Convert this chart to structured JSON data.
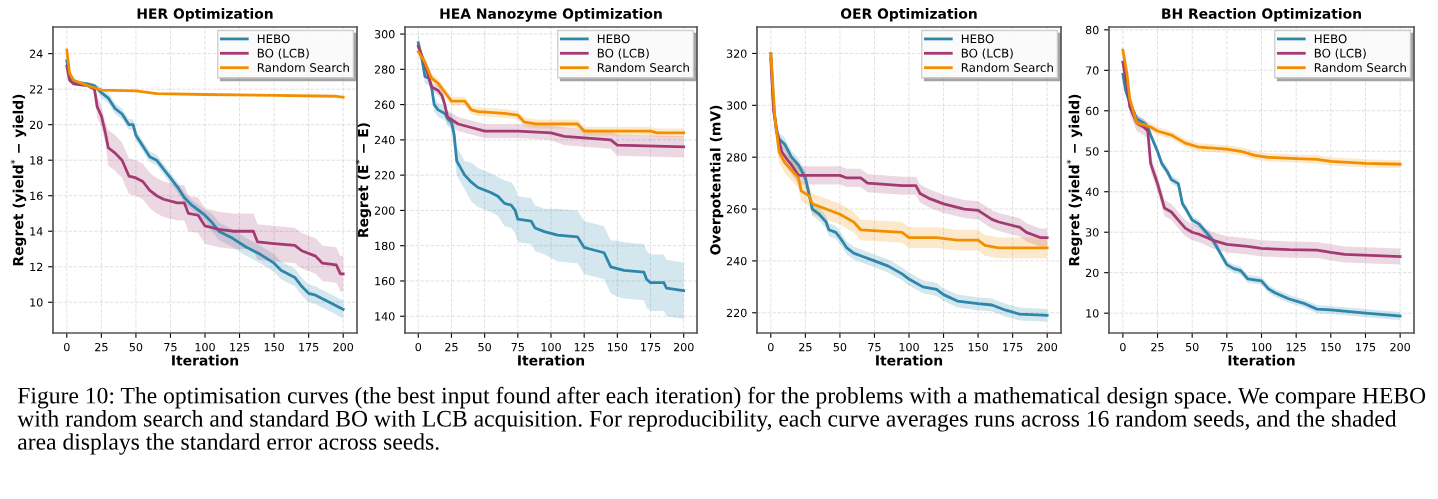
{
  "chart_data": [
    {
      "type": "line",
      "title": "HER Optimization",
      "xlabel": "Iteration",
      "ylabel": "Regret (yield$^{*}$ − yield)",
      "xlim": [
        -10,
        210
      ],
      "xticks": [
        0,
        25,
        50,
        75,
        100,
        125,
        150,
        175,
        200
      ],
      "ylim": [
        8.27,
        25.5
      ],
      "yticks": [
        10,
        12,
        14,
        16,
        18,
        20,
        22,
        24
      ],
      "grid": true,
      "legend": "top right",
      "series": [
        {
          "name": "HEBO",
          "color": "#2e86ab",
          "x": [
            0,
            2,
            5,
            15,
            20,
            25,
            30,
            35,
            40,
            45,
            48,
            50,
            55,
            60,
            65,
            70,
            75,
            80,
            85,
            90,
            95,
            100,
            105,
            110,
            120,
            130,
            140,
            150,
            155,
            165,
            170,
            175,
            180,
            190,
            200
          ],
          "values": [
            23.6,
            22.6,
            22.4,
            22.3,
            22.2,
            21.8,
            21.5,
            20.9,
            20.6,
            20.0,
            20.0,
            19.4,
            18.8,
            18.2,
            18.0,
            17.5,
            17.0,
            16.5,
            15.9,
            15.5,
            15.2,
            14.9,
            14.5,
            14.0,
            13.6,
            13.1,
            12.7,
            12.2,
            11.8,
            11.4,
            10.9,
            10.5,
            10.4,
            10.0,
            9.6
          ],
          "lower": [
            23.5,
            22.5,
            22.3,
            22.2,
            22.1,
            21.5,
            21.2,
            20.6,
            20.3,
            19.7,
            19.7,
            19.1,
            18.5,
            17.9,
            17.7,
            17.2,
            16.7,
            16.2,
            15.6,
            15.2,
            14.9,
            14.6,
            14.0,
            13.5,
            13.1,
            12.6,
            12.2,
            11.7,
            11.3,
            10.9,
            10.4,
            10.0,
            9.9,
            9.5,
            9.1
          ],
          "upper": [
            23.7,
            22.7,
            22.5,
            22.4,
            22.3,
            22.1,
            21.8,
            21.2,
            20.9,
            20.3,
            20.3,
            19.7,
            19.1,
            18.5,
            18.3,
            17.8,
            17.3,
            16.8,
            16.2,
            15.8,
            15.5,
            15.2,
            15.0,
            14.5,
            14.1,
            13.6,
            13.2,
            12.7,
            12.3,
            11.9,
            11.4,
            11.0,
            10.9,
            10.5,
            10.1
          ]
        },
        {
          "name": "BO (LCB)",
          "color": "#a23b72",
          "x": [
            0,
            2,
            5,
            15,
            20,
            22,
            25,
            28,
            30,
            35,
            40,
            45,
            50,
            55,
            60,
            65,
            70,
            80,
            85,
            88,
            95,
            100,
            110,
            120,
            135,
            138,
            150,
            165,
            170,
            180,
            185,
            195,
            198,
            200
          ],
          "values": [
            23.3,
            22.5,
            22.3,
            22.2,
            22.0,
            21.0,
            20.5,
            19.5,
            18.7,
            18.4,
            18.0,
            17.1,
            17.0,
            16.8,
            16.3,
            16.0,
            15.8,
            15.6,
            15.6,
            15.0,
            14.9,
            14.3,
            14.1,
            14.0,
            14.0,
            13.4,
            13.3,
            13.2,
            12.9,
            12.6,
            12.2,
            12.1,
            11.6,
            11.6
          ],
          "lower": [
            23.2,
            22.4,
            22.2,
            22.1,
            21.9,
            20.4,
            19.9,
            18.9,
            17.7,
            17.4,
            17.0,
            16.1,
            16.0,
            15.8,
            15.3,
            15.0,
            14.8,
            14.6,
            14.6,
            14.0,
            13.9,
            13.3,
            13.1,
            13.0,
            13.0,
            12.4,
            12.3,
            12.2,
            11.9,
            11.6,
            11.2,
            11.1,
            10.6,
            10.6
          ],
          "upper": [
            23.4,
            22.6,
            22.4,
            22.3,
            22.1,
            21.6,
            21.1,
            20.1,
            19.7,
            19.4,
            19.0,
            18.1,
            18.0,
            17.8,
            17.3,
            17.0,
            16.8,
            16.6,
            16.6,
            16.0,
            15.9,
            15.3,
            15.1,
            15.0,
            15.0,
            14.4,
            14.3,
            14.2,
            13.9,
            13.6,
            13.2,
            13.1,
            12.6,
            12.6
          ]
        },
        {
          "name": "Random Search",
          "color": "#f18f01",
          "x": [
            0,
            2,
            5,
            15,
            25,
            50,
            65,
            100,
            150,
            195,
            200
          ],
          "values": [
            24.2,
            22.9,
            22.5,
            22.2,
            21.95,
            21.9,
            21.75,
            21.7,
            21.65,
            21.6,
            21.55
          ]
        }
      ],
      "annotations": [
        "Figure 10: The optimisation curves (the best input found after each iteration) for the problems with a mathematical design space. We compare HEBO with random search and standard BO with LCB acquisition. For reproducibility, each curve averages runs across 16 random seeds, and the shaded area displays the standard error across seeds."
      ]
    },
    {
      "type": "line",
      "title": "HEA Nanozyme Optimization",
      "xlabel": "Iteration",
      "ylabel": "Regret (E$^{*}$ − E)",
      "xlim": [
        -10,
        210
      ],
      "xticks": [
        0,
        25,
        50,
        75,
        100,
        125,
        150,
        175,
        200
      ],
      "ylim": [
        130.5,
        304
      ],
      "yticks": [
        140,
        160,
        180,
        200,
        220,
        240,
        260,
        280,
        300
      ],
      "grid": true,
      "legend": "top right",
      "series": [
        {
          "name": "HEBO",
          "color": "#2e86ab",
          "x": [
            0,
            3,
            5,
            8,
            10,
            12,
            15,
            20,
            22,
            25,
            27,
            29,
            32,
            35,
            40,
            45,
            55,
            60,
            65,
            70,
            73,
            75,
            85,
            88,
            95,
            105,
            120,
            125,
            130,
            135,
            140,
            145,
            150,
            155,
            170,
            172,
            175,
            185,
            187,
            200
          ],
          "values": [
            295,
            285,
            276,
            275,
            270,
            260,
            257,
            255,
            252,
            250,
            243,
            228,
            224,
            220,
            216,
            213,
            210,
            208,
            204,
            203,
            200,
            195,
            194,
            190,
            188,
            186,
            185,
            179,
            178,
            177,
            176,
            168,
            167,
            166,
            165,
            161,
            159,
            159,
            156,
            154.5
          ],
          "lower": [
            291,
            281,
            272,
            271,
            266,
            256,
            253,
            251,
            248,
            246,
            235,
            220,
            216,
            212,
            205,
            202,
            199,
            197,
            191,
            190,
            187,
            182,
            181,
            177,
            175,
            171,
            170,
            164,
            163,
            162,
            161,
            153,
            151,
            150,
            149,
            145,
            143,
            143,
            140,
            138.5
          ],
          "upper": [
            299,
            289,
            280,
            279,
            274,
            264,
            261,
            259,
            256,
            254,
            251,
            236,
            232,
            228,
            227,
            224,
            221,
            219,
            217,
            216,
            213,
            208,
            207,
            203,
            201,
            201,
            200,
            194,
            193,
            192,
            191,
            183,
            183,
            182,
            181,
            177,
            175,
            175,
            172,
            170.5
          ]
        },
        {
          "name": "BO (LCB)",
          "color": "#a23b72",
          "x": [
            0,
            5,
            10,
            15,
            18,
            20,
            22,
            30,
            40,
            50,
            75,
            100,
            110,
            145,
            150,
            200
          ],
          "values": [
            293,
            283,
            270,
            268,
            265,
            260,
            253,
            249,
            247,
            245,
            245,
            244,
            242,
            240,
            237,
            236
          ],
          "lower": [
            291,
            281,
            268,
            265,
            262,
            257,
            249,
            245,
            243,
            241,
            241,
            240,
            237,
            235,
            231,
            230
          ],
          "upper": [
            295,
            285,
            272,
            271,
            268,
            263,
            257,
            253,
            251,
            249,
            249,
            248,
            247,
            245,
            243,
            242
          ]
        },
        {
          "name": "Random Search",
          "color": "#f18f01",
          "x": [
            0,
            5,
            10,
            15,
            20,
            25,
            35,
            40,
            45,
            65,
            75,
            80,
            90,
            100,
            120,
            125,
            150,
            175,
            180,
            200
          ],
          "values": [
            290,
            284,
            275,
            272,
            267,
            262,
            262,
            257,
            256,
            255,
            254,
            250,
            249,
            249,
            249,
            245,
            245,
            245,
            244,
            244
          ],
          "lower": [
            287.5,
            281.5,
            272.5,
            269.5,
            264.5,
            259.5,
            259.5,
            254.5,
            253.5,
            252.5,
            251.5,
            247.5,
            246.5,
            246.5,
            246.5,
            242.5,
            242.5,
            242.5,
            241.5,
            241.5
          ],
          "upper": [
            292.5,
            286.5,
            277.5,
            274.5,
            269.5,
            264.5,
            264.5,
            259.5,
            258.5,
            257.5,
            256.5,
            252.5,
            251.5,
            251.5,
            251.5,
            247.5,
            247.5,
            247.5,
            246.5,
            246.5
          ]
        }
      ]
    },
    {
      "type": "line",
      "title": "OER Optimization",
      "xlabel": "Iteration",
      "ylabel": "Overpotential (mV)",
      "xlim": [
        -10,
        210
      ],
      "xticks": [
        0,
        25,
        50,
        75,
        100,
        125,
        150,
        175,
        200
      ],
      "ylim": [
        212.2,
        330.2
      ],
      "yticks": [
        220,
        240,
        260,
        280,
        300,
        320
      ],
      "grid": true,
      "legend": "top right",
      "series": [
        {
          "name": "HEBO",
          "color": "#2e86ab",
          "x": [
            0,
            2,
            4,
            6,
            10,
            15,
            20,
            25,
            28,
            30,
            35,
            40,
            42,
            47,
            50,
            55,
            60,
            65,
            75,
            85,
            95,
            100,
            110,
            120,
            125,
            135,
            150,
            160,
            170,
            180,
            200
          ],
          "values": [
            320,
            300,
            290,
            287,
            285,
            280,
            277,
            272,
            265,
            260,
            258,
            255,
            252,
            251,
            249,
            245,
            243,
            242,
            240,
            238,
            235,
            233,
            230,
            229,
            227,
            224.5,
            223.5,
            223,
            221,
            219.5,
            219
          ],
          "lower": [
            317.5,
            297.5,
            287.5,
            284.5,
            282.5,
            277.5,
            274.5,
            269.5,
            262.5,
            257.5,
            255.5,
            252.5,
            249.5,
            248.5,
            246.5,
            242.5,
            240.5,
            239.5,
            237.5,
            235.5,
            232.5,
            230.5,
            227.5,
            226.5,
            224.5,
            222,
            221,
            220.5,
            218.5,
            217,
            216.5
          ],
          "upper": [
            322.5,
            302.5,
            292.5,
            289.5,
            287.5,
            282.5,
            279.5,
            274.5,
            267.5,
            262.5,
            260.5,
            257.5,
            254.5,
            253.5,
            251.5,
            247.5,
            245.5,
            244.5,
            242.5,
            240.5,
            237.5,
            235.5,
            232.5,
            231.5,
            229.5,
            227,
            226,
            225.5,
            223.5,
            222,
            221.5
          ]
        },
        {
          "name": "BO (LCB)",
          "color": "#a23b72",
          "x": [
            0,
            2,
            5,
            8,
            12,
            15,
            20,
            50,
            55,
            65,
            70,
            95,
            105,
            108,
            115,
            125,
            140,
            150,
            160,
            165,
            180,
            185,
            195,
            200
          ],
          "values": [
            318,
            298,
            288,
            282,
            279,
            277,
            273,
            273,
            272,
            272,
            270,
            269,
            269,
            266,
            264,
            262,
            260,
            259.5,
            256,
            255,
            253,
            251,
            249,
            249
          ],
          "lower": [
            314.5,
            294.5,
            284.5,
            278.5,
            275.5,
            273.5,
            269.5,
            269.5,
            268.5,
            268.5,
            266.5,
            265.5,
            265.5,
            262.5,
            260.5,
            258.5,
            256.5,
            256,
            252.5,
            251.5,
            249.5,
            247.5,
            245.5,
            245.5
          ],
          "upper": [
            321.5,
            301.5,
            291.5,
            285.5,
            282.5,
            280.5,
            276.5,
            276.5,
            275.5,
            275.5,
            273.5,
            272.5,
            272.5,
            269.5,
            267.5,
            265.5,
            263.5,
            263,
            259.5,
            258.5,
            256.5,
            254.5,
            252.5,
            252.5
          ]
        },
        {
          "name": "Random Search",
          "color": "#f18f01",
          "x": [
            0,
            3,
            6,
            10,
            15,
            20,
            22,
            28,
            30,
            40,
            50,
            60,
            65,
            95,
            100,
            120,
            135,
            150,
            155,
            165,
            200
          ],
          "values": [
            320,
            295,
            282,
            278,
            275,
            272,
            267,
            265,
            262,
            260,
            258,
            255,
            252,
            251,
            249,
            249,
            248,
            248,
            246,
            245,
            245
          ],
          "lower": [
            316,
            291,
            278,
            274,
            271,
            268,
            263,
            261,
            258,
            256,
            254,
            251,
            248,
            247,
            245,
            245,
            244,
            244,
            242,
            241,
            241
          ],
          "upper": [
            324,
            299,
            286,
            282,
            279,
            276,
            271,
            269,
            266,
            264,
            262,
            259,
            256,
            255,
            253,
            253,
            252,
            252,
            250,
            249,
            249
          ]
        }
      ]
    },
    {
      "type": "line",
      "title": "BH Reaction Optimization",
      "xlabel": "Iteration",
      "ylabel": "Regret (yield$^{*}$ − yield)",
      "xlim": [
        -10,
        210
      ],
      "xticks": [
        0,
        25,
        50,
        75,
        100,
        125,
        150,
        175,
        200
      ],
      "ylim": [
        5.1,
        80.7
      ],
      "yticks": [
        10,
        20,
        30,
        40,
        50,
        60,
        70,
        80
      ],
      "grid": true,
      "legend": "top right",
      "series": [
        {
          "name": "HEBO",
          "color": "#2e86ab",
          "x": [
            0,
            2,
            5,
            10,
            15,
            18,
            20,
            25,
            28,
            32,
            35,
            40,
            43,
            45,
            50,
            55,
            60,
            65,
            70,
            75,
            80,
            85,
            90,
            100,
            105,
            110,
            120,
            130,
            140,
            150,
            175,
            200
          ],
          "values": [
            69,
            65,
            62,
            58,
            57,
            56,
            54,
            50,
            47,
            45,
            43,
            42,
            37,
            36,
            33,
            32,
            30,
            28,
            25,
            22,
            21,
            20.5,
            18.5,
            18,
            16,
            15,
            13.5,
            12.5,
            11,
            10.8,
            10,
            9.3
          ],
          "lower": [
            68,
            64,
            61,
            57,
            56,
            55,
            53,
            49,
            46,
            44,
            42,
            41,
            36,
            35,
            32,
            31,
            29,
            27,
            24,
            21,
            20,
            19.5,
            17.5,
            17,
            15,
            14,
            12.5,
            11.5,
            10,
            9.8,
            9,
            8.3
          ],
          "upper": [
            70,
            66,
            63,
            59,
            58,
            57,
            55,
            51,
            48,
            46,
            44,
            43,
            38,
            37,
            34,
            33,
            31,
            29,
            26,
            23,
            22,
            21.5,
            19.5,
            19,
            17,
            16,
            14.5,
            13.5,
            12,
            11.8,
            11,
            10.3
          ]
        },
        {
          "name": "BO (LCB)",
          "color": "#a23b72",
          "x": [
            0,
            3,
            5,
            10,
            15,
            18,
            20,
            25,
            30,
            35,
            40,
            45,
            50,
            55,
            65,
            75,
            90,
            100,
            120,
            140,
            150,
            160,
            200
          ],
          "values": [
            72,
            66,
            61,
            57,
            56,
            55,
            47,
            42,
            36,
            35,
            33,
            31,
            30,
            29.5,
            28,
            27,
            26.5,
            26,
            25.7,
            25.6,
            25,
            24.5,
            24
          ],
          "lower": [
            70,
            64,
            59,
            55,
            54,
            53,
            45,
            40,
            34,
            33,
            31,
            29,
            28,
            27.5,
            26,
            25,
            24.5,
            24,
            23.7,
            23.6,
            23,
            22.5,
            22
          ],
          "upper": [
            74,
            68,
            63,
            59,
            58,
            57,
            49,
            44,
            38,
            37,
            35,
            33,
            32,
            31.5,
            30,
            29,
            28.5,
            28,
            27.7,
            27.6,
            27,
            26.5,
            26
          ]
        },
        {
          "name": "Random Search",
          "color": "#f18f01",
          "x": [
            0,
            3,
            5,
            10,
            15,
            20,
            25,
            35,
            40,
            45,
            55,
            75,
            85,
            90,
            95,
            105,
            125,
            140,
            150,
            175,
            200
          ],
          "values": [
            75,
            69,
            63,
            57,
            56.5,
            56,
            55,
            54,
            53,
            52,
            51,
            50.5,
            50,
            49.5,
            49,
            48.5,
            48.2,
            48,
            47.5,
            47,
            46.8
          ],
          "lower": [
            74,
            68,
            62,
            56,
            55.5,
            55,
            54,
            53,
            52,
            51,
            50,
            49.5,
            49,
            48.5,
            48,
            47.5,
            47.2,
            47,
            46.5,
            46,
            45.8
          ],
          "upper": [
            76,
            70,
            64,
            58,
            57.5,
            57,
            56,
            55,
            54,
            53,
            52,
            51.5,
            51,
            50.5,
            50,
            49.5,
            49.2,
            49,
            48.5,
            48,
            47.8
          ]
        }
      ]
    }
  ]
}
